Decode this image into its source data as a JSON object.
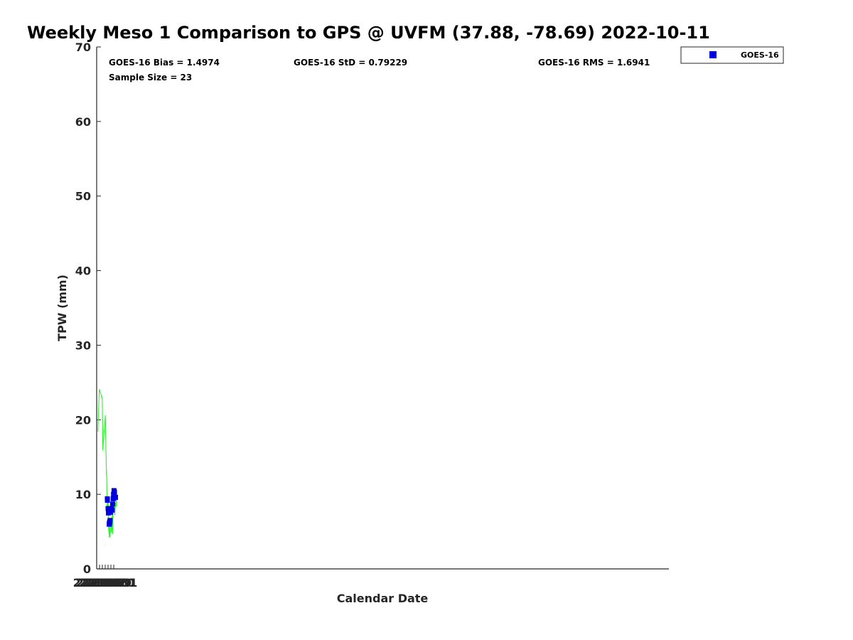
{
  "chart_data": {
    "type": "line",
    "title": "Weekly Meso 1 Comparison to GPS @ UVFM (37.88, -78.69) 2022-10-11",
    "xlabel": "Calendar Date",
    "ylabel": "TPW (mm)",
    "xlim": [
      221005,
      221206
    ],
    "ylim": [
      0,
      70
    ],
    "x_ticks": [
      {
        "value": 221005,
        "label": "221005"
      },
      {
        "value": 221006,
        "label": "221006"
      },
      {
        "value": 221007,
        "label": "221007"
      },
      {
        "value": 221008,
        "label": "221008"
      },
      {
        "value": 221009,
        "label": "221009"
      },
      {
        "value": 221010,
        "label": "221010"
      },
      {
        "value": 221011,
        "label": "221011"
      }
    ],
    "y_ticks": [
      0,
      10,
      20,
      30,
      40,
      50,
      60,
      70
    ],
    "grid": false,
    "legend": {
      "position": "top-right outside",
      "entries": [
        "GOES-16"
      ]
    },
    "stats": {
      "bias": "GOES-16 Bias = 1.4974",
      "std": "GOES-16 StD = 0.79229",
      "rms": "GOES-16 RMS = 1.6941",
      "sample": "Sample Size = 23"
    },
    "series": [
      {
        "kind": "line",
        "color": "#33ee33",
        "points": [
          [
            221005.44,
            18.4
          ],
          [
            221005.46,
            18.9
          ],
          [
            221005.93,
            24.1
          ],
          [
            221006.94,
            22.8
          ],
          [
            221006.95,
            23.1
          ],
          [
            221007.04,
            19.7
          ],
          [
            221007.07,
            20.1
          ],
          [
            221007.15,
            15.9
          ],
          [
            221008.01,
            20.6
          ],
          [
            221008.45,
            12.4
          ],
          [
            221008.46,
            13.2
          ],
          [
            221008.48,
            12.9
          ],
          [
            221008.72,
            7.2
          ],
          [
            221008.75,
            7.3
          ],
          [
            221008.8,
            8.3
          ],
          [
            221008.82,
            8.1
          ],
          [
            221008.88,
            9.3
          ],
          [
            221008.91,
            8.7
          ],
          [
            221009.0,
            8.4
          ],
          [
            221009.04,
            9.7
          ],
          [
            221009.1,
            6.1
          ],
          [
            221009.14,
            5.9
          ],
          [
            221009.18,
            5.4
          ],
          [
            221009.37,
            4.6
          ],
          [
            221009.4,
            5.2
          ],
          [
            221009.42,
            5.0
          ],
          [
            221009.44,
            4.2
          ],
          [
            221009.47,
            5.4
          ],
          [
            221009.5,
            4.3
          ],
          [
            221009.53,
            5.8
          ],
          [
            221009.56,
            4.9
          ],
          [
            221009.59,
            5.5
          ],
          [
            221009.62,
            4.4
          ],
          [
            221009.69,
            4.3
          ],
          [
            221009.72,
            5.1
          ],
          [
            221009.76,
            5.3
          ],
          [
            221009.79,
            5.9
          ],
          [
            221009.84,
            6.7
          ],
          [
            221009.88,
            6.2
          ],
          [
            221009.92,
            6.1
          ],
          [
            221010.08,
            6.2
          ],
          [
            221010.12,
            4.9
          ],
          [
            221010.21,
            5.1
          ],
          [
            221010.25,
            4.8
          ],
          [
            221010.3,
            5.9
          ],
          [
            221010.4,
            7.4
          ],
          [
            221010.42,
            7.6
          ],
          [
            221010.45,
            7.2
          ],
          [
            221010.48,
            7.6
          ],
          [
            221010.57,
            5.2
          ],
          [
            221010.6,
            6.1
          ],
          [
            221010.63,
            4.7
          ],
          [
            221010.68,
            5.3
          ],
          [
            221010.75,
            7.3
          ],
          [
            221010.8,
            7.6
          ],
          [
            221010.84,
            8.9
          ],
          [
            221010.9,
            8.8
          ],
          [
            221010.93,
            9.2
          ],
          [
            221010.98,
            8.4
          ],
          [
            221011.06,
            8.0
          ],
          [
            221011.1,
            7.5
          ],
          [
            221011.14,
            7.9
          ],
          [
            221011.24,
            8.4
          ],
          [
            221011.3,
            8.1
          ],
          [
            221011.38,
            7.2
          ],
          [
            221011.42,
            7.5
          ],
          [
            221011.51,
            8.5
          ],
          [
            221011.57,
            8.3
          ],
          [
            221011.61,
            8.9
          ],
          [
            221011.65,
            8.3
          ],
          [
            221011.73,
            8.5
          ],
          [
            221011.77,
            8.8
          ],
          [
            221011.89,
            9.2
          ],
          [
            221011.94,
            9.8
          ],
          [
            221012.01,
            8.4
          ]
        ]
      },
      {
        "name": "GOES-16",
        "kind": "scatter",
        "marker": "square",
        "color": "#0000dd",
        "points": [
          [
            221008.74,
            9.4
          ],
          [
            221008.78,
            9.2
          ],
          [
            221009.0,
            8.1
          ],
          [
            221009.13,
            7.5
          ],
          [
            221009.4,
            6.0
          ],
          [
            221009.44,
            6.0
          ],
          [
            221009.48,
            6.1
          ],
          [
            221009.52,
            6.2
          ],
          [
            221009.58,
            6.3
          ],
          [
            221009.71,
            6.5
          ],
          [
            221009.84,
            7.6
          ],
          [
            221009.88,
            8.1
          ],
          [
            221010.09,
            8.1
          ],
          [
            221010.27,
            7.9
          ],
          [
            221010.45,
            7.9
          ],
          [
            221010.62,
            8.7
          ],
          [
            221010.8,
            9.4
          ],
          [
            221010.92,
            10.0
          ],
          [
            221011.09,
            10.5
          ],
          [
            221011.26,
            10.3
          ],
          [
            221011.56,
            9.6
          ],
          [
            221011.59,
            9.6
          ],
          [
            221011.62,
            9.6
          ]
        ]
      }
    ]
  }
}
